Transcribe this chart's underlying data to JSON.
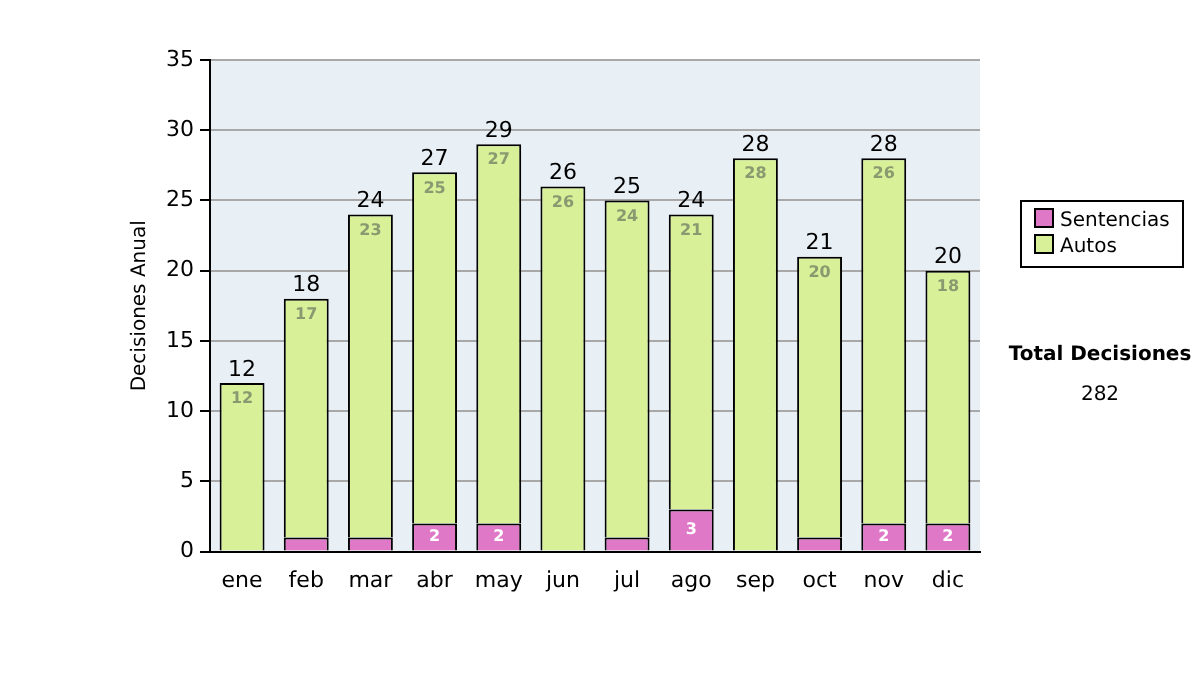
{
  "chart_data": {
    "type": "bar",
    "stacked": true,
    "ylabel": "Decisiones Anual",
    "categories": [
      "ene",
      "feb",
      "mar",
      "abr",
      "may",
      "jun",
      "jul",
      "ago",
      "sep",
      "oct",
      "nov",
      "dic"
    ],
    "series": [
      {
        "name": "Sentencias",
        "color": "#e078c8",
        "values": [
          0,
          1,
          1,
          2,
          2,
          0,
          1,
          3,
          0,
          1,
          2,
          2
        ],
        "value_labels": [
          null,
          null,
          null,
          "2",
          "2",
          null,
          null,
          "3",
          null,
          null,
          "2",
          "2"
        ]
      },
      {
        "name": "Autos",
        "color": "#d8f098",
        "values": [
          12,
          17,
          23,
          25,
          27,
          26,
          24,
          21,
          28,
          20,
          26,
          18
        ],
        "value_labels": [
          "12",
          "17",
          "23",
          "25",
          "27",
          "26",
          "24",
          "21",
          "28",
          "20",
          "26",
          "18"
        ]
      }
    ],
    "totals": [
      "12",
      "18",
      "24",
      "27",
      "29",
      "26",
      "25",
      "24",
      "28",
      "21",
      "28",
      "20"
    ],
    "ylim": [
      0,
      35
    ],
    "yticks": [
      0,
      5,
      10,
      15,
      20,
      25,
      30,
      35
    ],
    "grid": "y",
    "legend": "right",
    "annotations": [
      "Total Decisiones",
      "282"
    ]
  }
}
